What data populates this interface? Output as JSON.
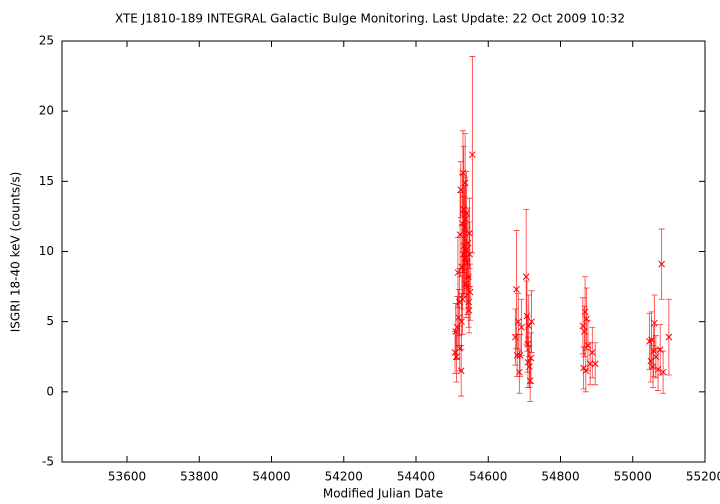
{
  "chart_data": {
    "type": "errorbar-scatter",
    "title": "XTE J1810-189   INTEGRAL Galactic Bulge Monitoring.  Last Update: 22 Oct 2009 10:32",
    "xlabel": "Modified Julian Date",
    "ylabel": "ISGRI 18-40 keV (counts/s)",
    "xlim": [
      53420,
      55200
    ],
    "ylim": [
      -5,
      25
    ],
    "xticks": [
      53600,
      53800,
      54000,
      54200,
      54400,
      54600,
      54800,
      55000,
      55200
    ],
    "yticks": [
      -5,
      0,
      5,
      10,
      15,
      20,
      25
    ],
    "color": "#ff0000",
    "x": [
      54508,
      54510,
      54512,
      54514,
      54516,
      54518,
      54520,
      54521,
      54522,
      54524,
      54525,
      54526,
      54527,
      54528,
      54529,
      54530,
      54531,
      54532,
      54533,
      54534,
      54535,
      54536,
      54537,
      54538,
      54539,
      54540,
      54541,
      54542,
      54556,
      54544,
      54545,
      54546,
      54547,
      54548,
      54549,
      54550,
      54675,
      54678,
      54680,
      54683,
      54686,
      54688,
      54692,
      54705,
      54707,
      54709,
      54710,
      54712,
      54714,
      54716,
      54718,
      54720,
      54862,
      54864,
      54866,
      54868,
      54870,
      54872,
      54876,
      54882,
      54888,
      54896,
      55046,
      55050,
      55052,
      55056,
      55058,
      55060,
      55064,
      55070,
      55076,
      55080,
      55084,
      55100
    ],
    "values": [
      2.8,
      4.3,
      2.5,
      4.6,
      8.5,
      5.3,
      6.4,
      3.1,
      11.2,
      14.4,
      1.5,
      5.0,
      8.9,
      12.0,
      6.6,
      15.6,
      9.8,
      13.0,
      10.4,
      11.7,
      9.5,
      14.9,
      12.3,
      10.1,
      7.7,
      12.7,
      9.2,
      7.5,
      16.9,
      10.6,
      8.2,
      6.4,
      5.8,
      11.3,
      9.8,
      7.1,
      3.9,
      7.3,
      2.6,
      5.0,
      1.4,
      2.6,
      4.6,
      8.2,
      5.4,
      3.4,
      2.1,
      4.7,
      1.8,
      0.8,
      2.4,
      5.0,
      4.7,
      1.7,
      4.3,
      5.7,
      1.5,
      5.2,
      3.3,
      2.0,
      2.8,
      2.0,
      3.6,
      2.2,
      3.7,
      1.8,
      2.9,
      4.9,
      2.5,
      1.6,
      3.0,
      9.1,
      1.4,
      3.9
    ],
    "errors": [
      1.5,
      2.0,
      1.8,
      2.2,
      2.5,
      2.0,
      2.4,
      1.6,
      3.0,
      2.0,
      1.8,
      2.0,
      3.0,
      3.5,
      2.5,
      3.0,
      3.0,
      4.5,
      3.5,
      3.0,
      2.5,
      3.5,
      3.0,
      2.6,
      2.4,
      3.0,
      2.5,
      2.0,
      7.0,
      2.5,
      2.2,
      1.8,
      1.6,
      2.5,
      2.3,
      2.0,
      2.0,
      4.2,
      1.5,
      2.0,
      1.5,
      1.5,
      2.0,
      4.8,
      2.5,
      2.0,
      1.8,
      2.2,
      1.5,
      1.5,
      1.8,
      2.2,
      2.0,
      1.5,
      1.8,
      2.5,
      1.5,
      2.2,
      1.8,
      1.5,
      1.8,
      1.5,
      2.0,
      1.5,
      2.0,
      1.5,
      1.8,
      2.0,
      1.5,
      1.5,
      1.8,
      2.5,
      1.5,
      2.7
    ]
  }
}
